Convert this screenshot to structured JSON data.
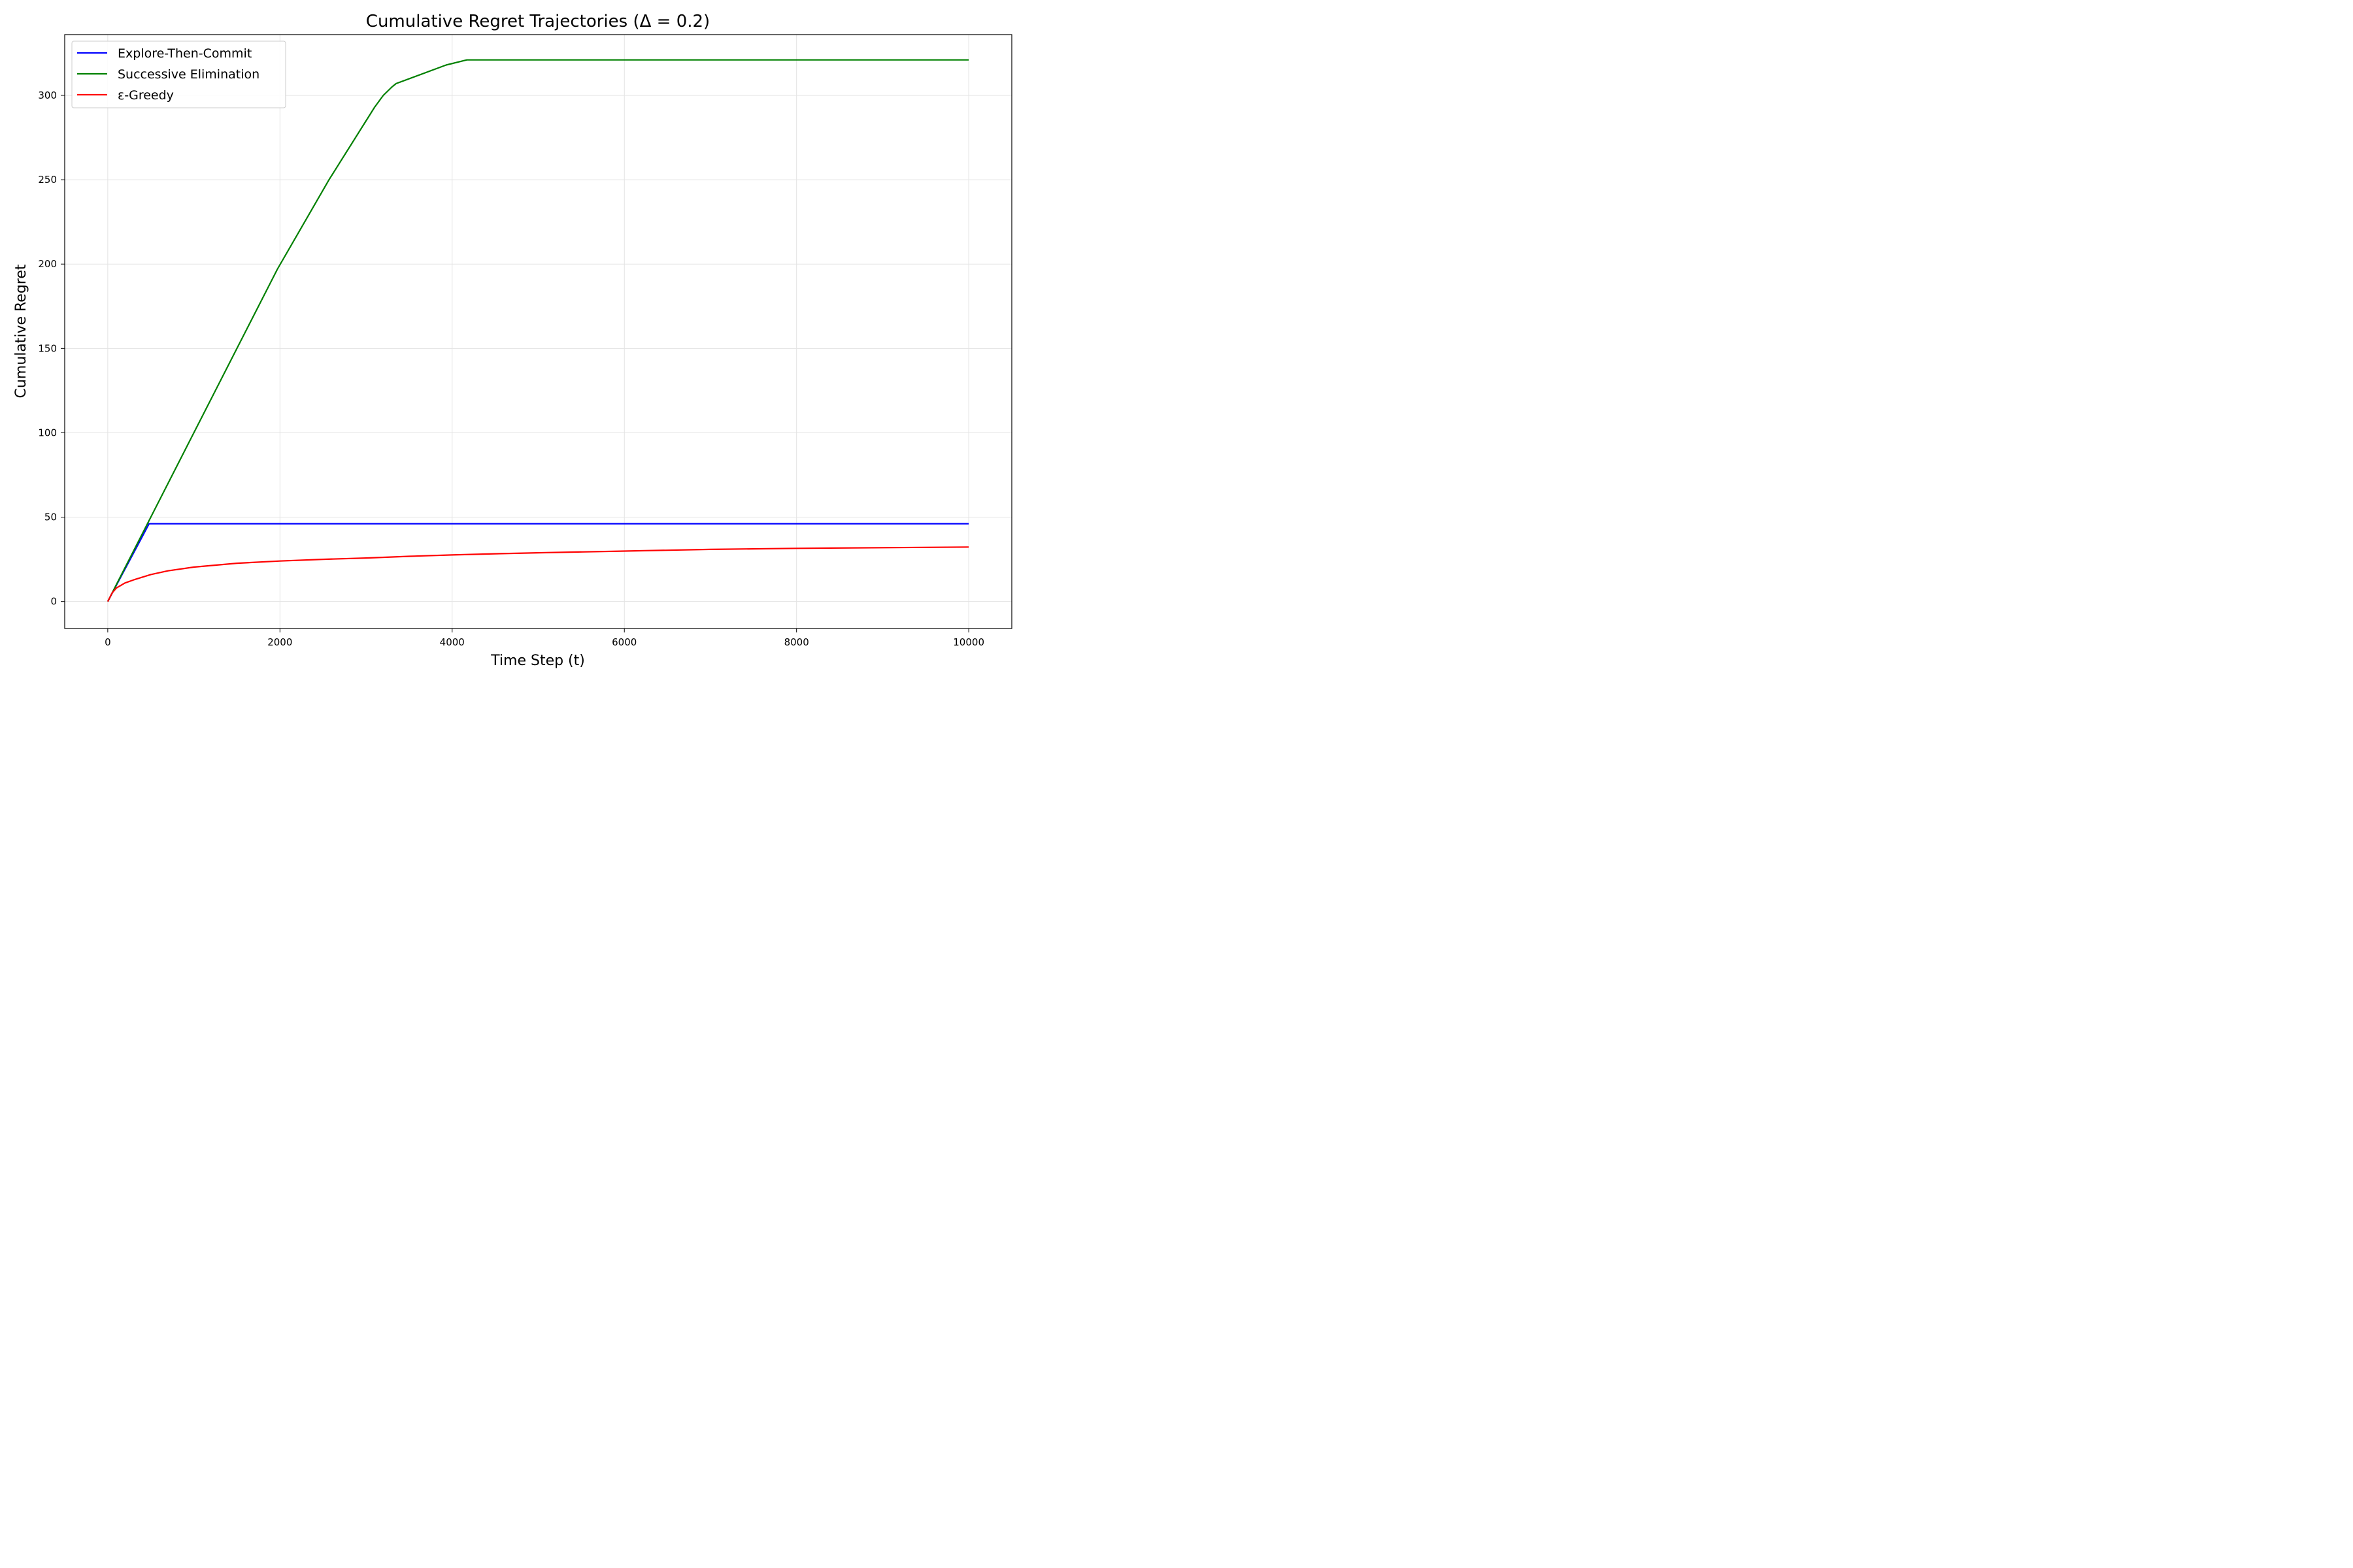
{
  "chart_data": {
    "type": "line",
    "title": "Cumulative Regret Trajectories (Δ = 0.2)",
    "xlabel": "Time Step (t)",
    "ylabel": "Cumulative Regret",
    "xlim": [
      -500,
      10500
    ],
    "ylim": [
      -16,
      336
    ],
    "xticks": [
      0,
      2000,
      4000,
      6000,
      8000,
      10000
    ],
    "yticks": [
      0,
      50,
      100,
      150,
      200,
      250,
      300
    ],
    "grid": true,
    "legend_position": "top-left",
    "series": [
      {
        "name": "Explore-Then-Commit",
        "color": "#0000ff",
        "x": [
          0,
          100,
          200,
          300,
          400,
          480,
          500,
          10000
        ],
        "y": [
          0,
          9.6,
          19.2,
          28.8,
          38.4,
          46.1,
          46.1,
          46.1
        ]
      },
      {
        "name": "Successive Elimination",
        "color": "#008000",
        "x": [
          0,
          100,
          500,
          1000,
          1500,
          1970,
          2570,
          3100,
          3200,
          3300,
          3350,
          3930,
          4170,
          10000
        ],
        "y": [
          0,
          10,
          50,
          100,
          150,
          197,
          250,
          293,
          300,
          305,
          307,
          318,
          321,
          321
        ]
      },
      {
        "name": "ε-Greedy",
        "color": "#ff0000",
        "x": [
          0,
          50,
          100,
          200,
          300,
          500,
          700,
          1000,
          1500,
          2000,
          2500,
          3000,
          3500,
          4000,
          4500,
          5000,
          6000,
          7000,
          8000,
          9000,
          10000
        ],
        "y": [
          0,
          5,
          8,
          11,
          12.8,
          16,
          18.2,
          20.4,
          22.7,
          24,
          25,
          25.8,
          26.8,
          27.6,
          28.3,
          28.9,
          29.9,
          30.9,
          31.5,
          31.9,
          32.3
        ]
      }
    ]
  }
}
